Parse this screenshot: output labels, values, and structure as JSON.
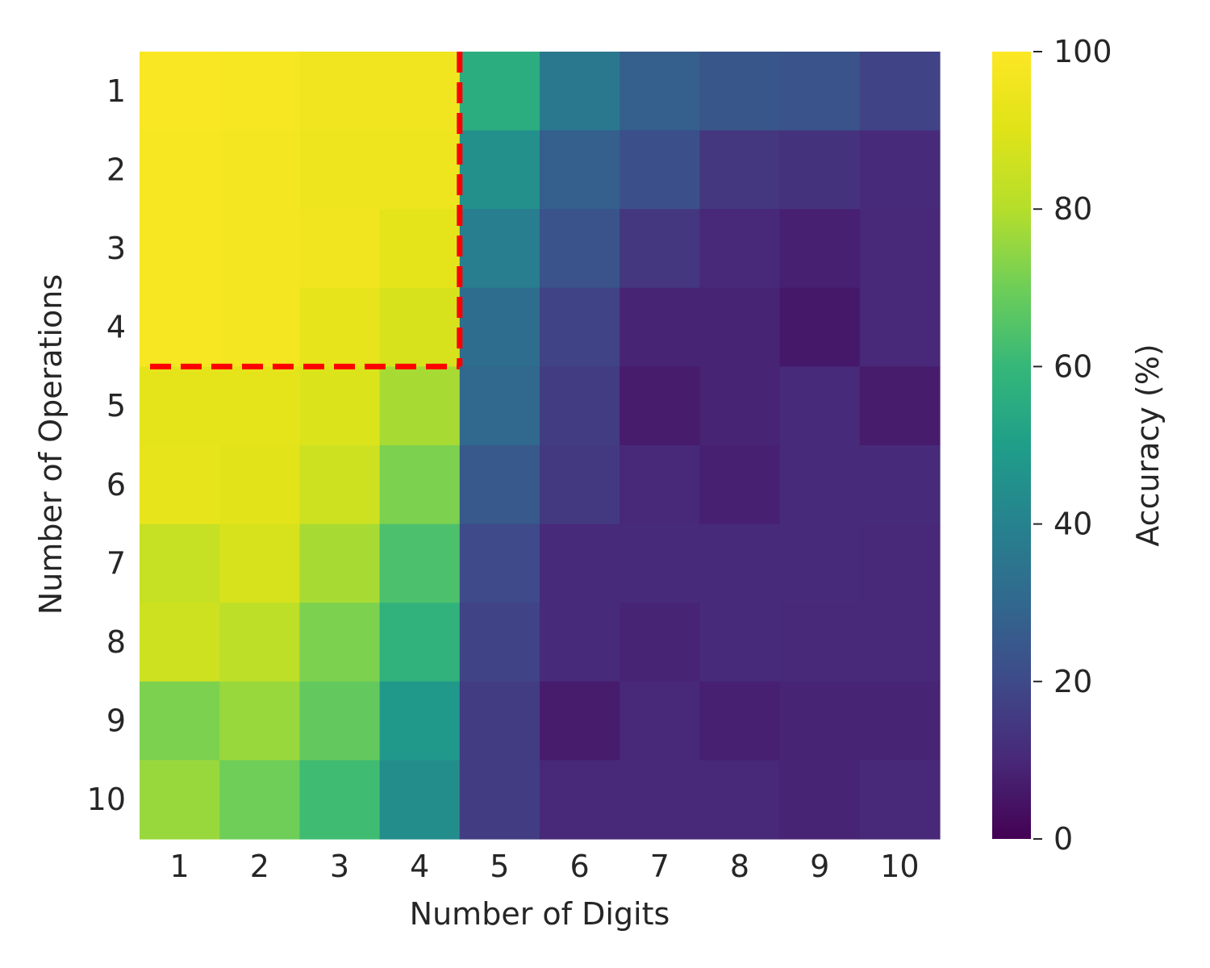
{
  "chart_data": {
    "type": "heatmap",
    "xlabel": "Number of Digits",
    "ylabel": "Number of Operations",
    "colorbar_label": "Accuracy (%)",
    "colorbar_range": [
      0,
      100
    ],
    "colorbar_ticks": [
      "0",
      "20",
      "40",
      "60",
      "80",
      "100"
    ],
    "colormap": "viridis",
    "x_categories": [
      "1",
      "2",
      "3",
      "4",
      "5",
      "6",
      "7",
      "8",
      "9",
      "10"
    ],
    "y_categories": [
      "1",
      "2",
      "3",
      "4",
      "5",
      "6",
      "7",
      "8",
      "9",
      "10"
    ],
    "values": [
      [
        99,
        98,
        96,
        96,
        56,
        36,
        27,
        24,
        23,
        18
      ],
      [
        98,
        97,
        95,
        95,
        45,
        27,
        22,
        14,
        13,
        11
      ],
      [
        98,
        97,
        96,
        92,
        38,
        23,
        14,
        10,
        8,
        10
      ],
      [
        98,
        97,
        93,
        88,
        32,
        18,
        9,
        9,
        6,
        10
      ],
      [
        92,
        92,
        89,
        78,
        30,
        16,
        7,
        9,
        11,
        7
      ],
      [
        93,
        91,
        86,
        72,
        25,
        15,
        10,
        8,
        11,
        11
      ],
      [
        84,
        88,
        78,
        64,
        20,
        11,
        11,
        11,
        11,
        10
      ],
      [
        86,
        82,
        72,
        58,
        18,
        11,
        9,
        11,
        10,
        10
      ],
      [
        72,
        76,
        68,
        48,
        16,
        7,
        10,
        8,
        9,
        9
      ],
      [
        76,
        70,
        62,
        44,
        16,
        10,
        10,
        10,
        9,
        10
      ]
    ],
    "annotation": {
      "style": "red dashed border",
      "color": "#ff0000",
      "region_x": [
        "1",
        "4"
      ],
      "region_y": [
        "1",
        "4"
      ]
    }
  }
}
